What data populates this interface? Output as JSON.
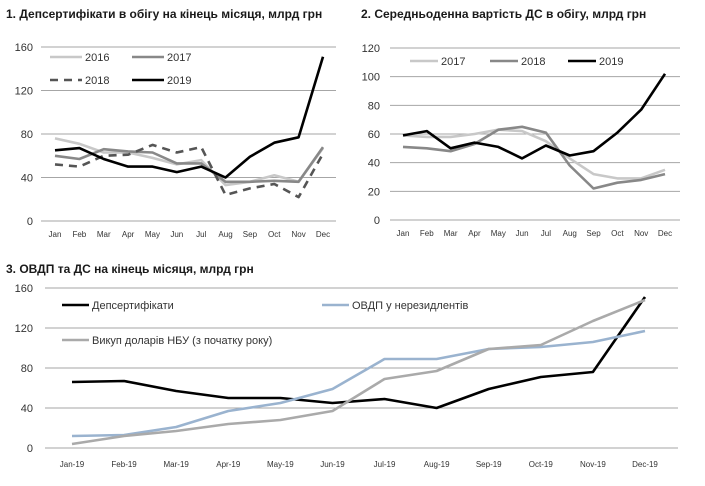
{
  "chart_data": [
    {
      "id": "c1",
      "type": "line",
      "title": "1. Депсертифікати в обігу на кінець місяця, млрд грн",
      "xlabel": "",
      "ylabel": "",
      "categories": [
        "Jan",
        "Feb",
        "Mar",
        "Apr",
        "May",
        "Jun",
        "Jul",
        "Aug",
        "Sep",
        "Oct",
        "Nov",
        "Dec"
      ],
      "ylim": [
        0,
        160
      ],
      "yticks": [
        0,
        40,
        80,
        120,
        160
      ],
      "grid": true,
      "legend": "top-left",
      "series": [
        {
          "name": "2016",
          "color": "#c8c8c8",
          "dash": false,
          "values": [
            76,
            71,
            63,
            63,
            58,
            52,
            56,
            33,
            36,
            42,
            36,
            67
          ]
        },
        {
          "name": "2017",
          "color": "#888888",
          "dash": false,
          "values": [
            60,
            57,
            66,
            64,
            63,
            53,
            53,
            36,
            36,
            37,
            36,
            68
          ]
        },
        {
          "name": "2018",
          "color": "#555555",
          "dash": true,
          "values": [
            52,
            50,
            60,
            61,
            70,
            63,
            68,
            24,
            30,
            34,
            22,
            62
          ]
        },
        {
          "name": "2019",
          "color": "#000000",
          "dash": false,
          "values": [
            65,
            67,
            57,
            50,
            50,
            45,
            50,
            40,
            59,
            72,
            77,
            151
          ]
        }
      ]
    },
    {
      "id": "c2",
      "type": "line",
      "title": "2. Середньоденна вартість ДС в обігу, млрд грн",
      "xlabel": "",
      "ylabel": "",
      "categories": [
        "Jan",
        "Feb",
        "Mar",
        "Apr",
        "May",
        "Jun",
        "Jul",
        "Aug",
        "Sep",
        "Oct",
        "Nov",
        "Dec"
      ],
      "ylim": [
        0,
        120
      ],
      "yticks": [
        0,
        20,
        40,
        60,
        80,
        100,
        120
      ],
      "grid": true,
      "legend": "top",
      "series": [
        {
          "name": "2017",
          "color": "#c8c8c8",
          "dash": false,
          "values": [
            59,
            58,
            58,
            60,
            63,
            62,
            55,
            43,
            32,
            29,
            29,
            35
          ]
        },
        {
          "name": "2018",
          "color": "#888888",
          "dash": false,
          "values": [
            51,
            50,
            48,
            53,
            63,
            65,
            61,
            38,
            22,
            26,
            28,
            32
          ]
        },
        {
          "name": "2019",
          "color": "#000000",
          "dash": false,
          "values": [
            59,
            62,
            50,
            54,
            51,
            43,
            52,
            45,
            48,
            61,
            77,
            102
          ]
        }
      ]
    },
    {
      "id": "c3",
      "type": "line",
      "title": "3. ОВДП та ДС на кінець місяця, млрд грн",
      "xlabel": "",
      "ylabel": "",
      "categories": [
        "Jan-19",
        "Feb-19",
        "Mar-19",
        "Apr-19",
        "May-19",
        "Jun-19",
        "Jul-19",
        "Aug-19",
        "Sep-19",
        "Oct-19",
        "Nov-19",
        "Dec-19"
      ],
      "ylim": [
        0,
        160
      ],
      "yticks": [
        0,
        40,
        80,
        120,
        160
      ],
      "grid": true,
      "legend": "top-left",
      "series": [
        {
          "name": "Депсертифікати",
          "color": "#000000",
          "dash": false,
          "values": [
            66,
            67,
            57,
            50,
            50,
            45,
            49,
            40,
            59,
            71,
            76,
            151
          ]
        },
        {
          "name": "ОВДП у нерезидлентів",
          "color": "#9ab3cf",
          "dash": false,
          "values": [
            12,
            13,
            21,
            37,
            45,
            59,
            89,
            89,
            99,
            101,
            106,
            117
          ]
        },
        {
          "name": "Викуп доларів НБУ (з початку року)",
          "color": "#aaaaaa",
          "dash": false,
          "values": [
            4,
            12,
            17,
            24,
            28,
            37,
            69,
            77,
            99,
            103,
            127,
            148
          ]
        }
      ]
    }
  ]
}
